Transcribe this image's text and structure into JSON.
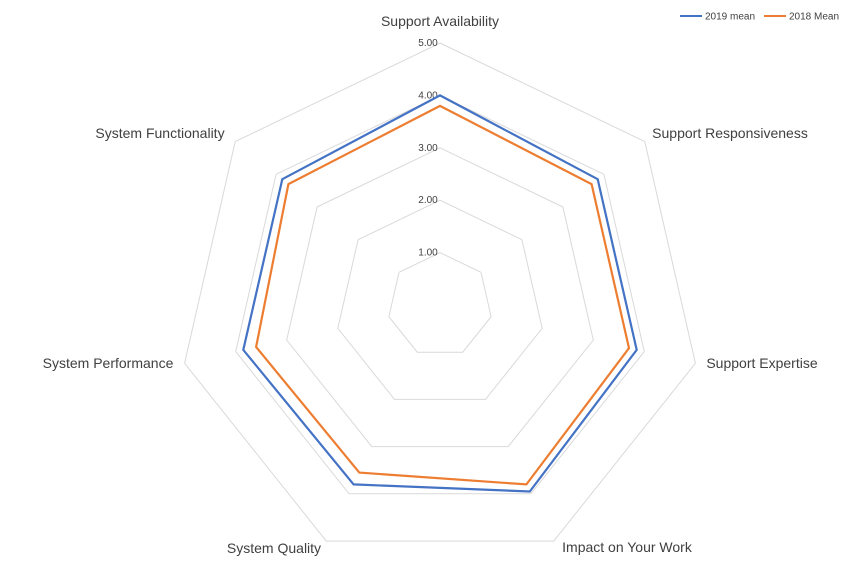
{
  "chart_data": {
    "type": "radar",
    "categories": [
      "Support Availability",
      "Support Responsiveness",
      "Support Expertise",
      "Impact on Your Work",
      "System Quality",
      "System Performance",
      "System Functionality"
    ],
    "series": [
      {
        "name": "2019 mean",
        "color": "#4472c4",
        "values": [
          4.0,
          3.85,
          3.85,
          3.95,
          3.8,
          3.85,
          3.85
        ]
      },
      {
        "name": "2018 Mean",
        "color": "#ed7d31",
        "values": [
          3.8,
          3.7,
          3.7,
          3.8,
          3.55,
          3.6,
          3.7
        ]
      }
    ],
    "ticks": [
      "1.00",
      "2.00",
      "3.00",
      "4.00",
      "5.00"
    ],
    "tick_values": [
      1,
      2,
      3,
      4,
      5
    ],
    "range": [
      0,
      5
    ],
    "legend_position": "top-right",
    "grid": true
  }
}
